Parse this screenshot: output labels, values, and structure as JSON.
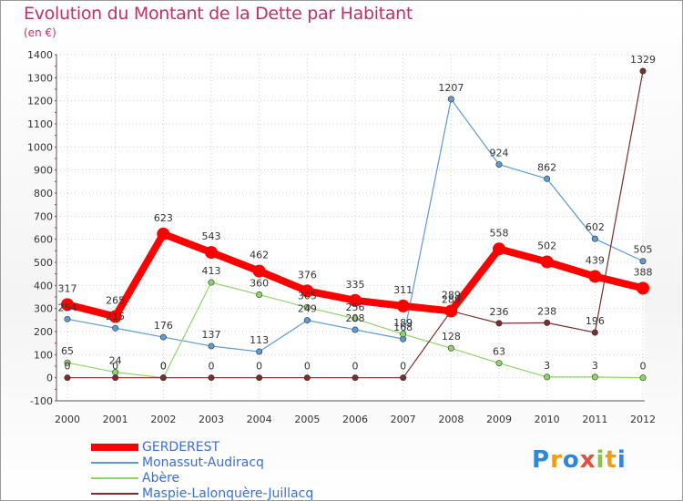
{
  "title": "Evolution du Montant de la Dette par Habitant",
  "subtitle": "(en €)",
  "logo": {
    "letters": [
      "P",
      "r",
      "o",
      "x",
      "i",
      "t",
      "i"
    ],
    "colors": [
      "#2e86de",
      "#f39c12",
      "#2e86de",
      "#e74c3c",
      "#8bc34a",
      "#f39c12",
      "#2e86de"
    ]
  },
  "chart_data": {
    "type": "line",
    "x": [
      "2000",
      "2001",
      "2002",
      "2003",
      "2004",
      "2005",
      "2006",
      "2007",
      "2008",
      "2009",
      "2010",
      "2011",
      "2012"
    ],
    "ylim": [
      -100,
      1400
    ],
    "yticks": [
      "-100",
      "0",
      "100",
      "200",
      "300",
      "400",
      "500",
      "600",
      "700",
      "800",
      "900",
      "1000",
      "1100",
      "1200",
      "1300",
      "1400"
    ],
    "legend_position": "bottom-left",
    "series": [
      {
        "name": "GERDEREST",
        "color": "#ff0000",
        "values": [
          317,
          265,
          623,
          543,
          462,
          376,
          335,
          311,
          289,
          558,
          502,
          439,
          388
        ],
        "labels": [
          "317",
          "265",
          "623",
          "543",
          "462",
          "376",
          "335",
          "311",
          "289",
          "558",
          "502",
          "439",
          "388"
        ]
      },
      {
        "name": "Monassut-Audiracq",
        "color": "#5b9bd5",
        "values": [
          254,
          215,
          176,
          137,
          113,
          249,
          208,
          168,
          1207,
          924,
          862,
          602,
          505
        ],
        "labels": [
          "254",
          "215",
          "176",
          "137",
          "113",
          "249",
          "208",
          "168",
          "1207",
          "924",
          "862",
          "602",
          "505"
        ]
      },
      {
        "name": "Abère",
        "color": "#8fd46b",
        "values": [
          65,
          24,
          0,
          413,
          360,
          305,
          256,
          189,
          128,
          63,
          3,
          3,
          0
        ],
        "labels": [
          "65",
          "24",
          "0",
          "413",
          "360",
          "305",
          "256",
          "189",
          "128",
          "63",
          "3",
          "3",
          "0"
        ]
      },
      {
        "name": "Maspie-Lalonquère-Juillacq",
        "color": "#7b2d2d",
        "values": [
          0,
          0,
          0,
          0,
          0,
          0,
          0,
          0,
          289,
          236,
          238,
          196,
          1329
        ],
        "labels": [
          "0",
          "0",
          "0",
          "0",
          "0",
          "0",
          "0",
          "0",
          "289",
          "236",
          "238",
          "196",
          "1329"
        ]
      }
    ]
  }
}
